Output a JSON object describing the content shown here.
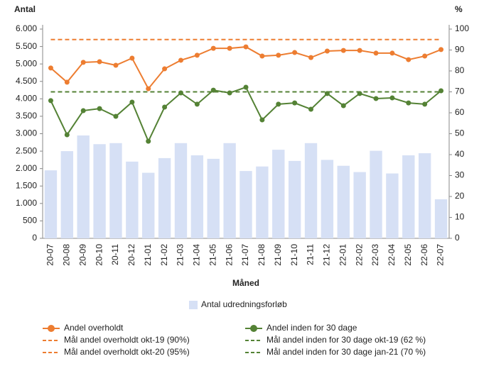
{
  "chart_data": {
    "type": "bar-line",
    "y_label": "Antal",
    "y2_label": "%",
    "x_label": "Måned",
    "categories": [
      "20-07",
      "20-08",
      "20-09",
      "20-10",
      "20-11",
      "20-12",
      "21-01",
      "21-02",
      "21-03",
      "21-04",
      "21-05",
      "21-06",
      "21-07",
      "21-08",
      "21-09",
      "21-10",
      "21-11",
      "21-12",
      "22-01",
      "22-02",
      "22-03",
      "22-04",
      "22-05",
      "22-06",
      "22-07"
    ],
    "ylim": [
      0,
      6000
    ],
    "yticks": [
      0,
      500,
      {
        "value": 1000,
        "label": "1.000"
      },
      {
        "value": 1500,
        "label": "1.500"
      },
      {
        "value": 2000,
        "label": "2.000"
      },
      {
        "value": 2500,
        "label": "2.500"
      },
      {
        "value": 3000,
        "label": "3.000"
      },
      {
        "value": 3500,
        "label": "3.500"
      },
      {
        "value": 4000,
        "label": "4.000"
      },
      {
        "value": 4500,
        "label": "4.500"
      },
      {
        "value": 5000,
        "label": "5.000"
      },
      {
        "value": 5500,
        "label": "5.500"
      },
      {
        "value": 6000,
        "label": "6.000"
      }
    ],
    "y2lim": [
      0,
      100
    ],
    "y2ticks": [
      0,
      10,
      20,
      30,
      40,
      50,
      60,
      70,
      80,
      90,
      100
    ],
    "bars": {
      "name": "Antal udredningsforløb",
      "color": "#d6e0f5",
      "values": [
        1950,
        2500,
        2950,
        2700,
        2730,
        2200,
        1880,
        2300,
        2730,
        2380,
        2280,
        2730,
        1930,
        2060,
        2540,
        2220,
        2730,
        2250,
        2080,
        1900,
        2510,
        1860,
        2380,
        2440,
        1120
      ]
    },
    "series": [
      {
        "name": "Andel overholdt",
        "color": "#ed7d31",
        "axis": "y2",
        "values": [
          81.4,
          74.6,
          84.1,
          84.4,
          82.7,
          86.1,
          71.5,
          81.0,
          85.1,
          87.5,
          90.8,
          90.8,
          91.5,
          87.1,
          87.5,
          88.8,
          86.4,
          89.5,
          89.8,
          89.8,
          88.5,
          88.5,
          85.4,
          87.1,
          90.2
        ]
      },
      {
        "name": "Andel inden for 30 dage",
        "color": "#548235",
        "axis": "y2",
        "values": [
          65.8,
          49.5,
          61.0,
          62.0,
          58.3,
          65.1,
          46.4,
          62.7,
          69.5,
          64.1,
          70.8,
          69.5,
          72.2,
          56.6,
          64.1,
          64.7,
          61.7,
          69.2,
          63.4,
          69.2,
          66.8,
          67.1,
          64.7,
          64.1,
          70.5
        ]
      }
    ],
    "targets": [
      {
        "name": "Mål andel overholdt okt-19 (90%)",
        "color": "#ed7d31"
      },
      {
        "name": "Mål andel overholdt okt-20 (95%)",
        "color": "#ed7d31",
        "value": 95
      },
      {
        "name": "Mål andel inden for 30 dage okt-19 (62 %)",
        "color": "#548235"
      },
      {
        "name": "Mål andel inden for 30 dage jan-21 (70 %)",
        "color": "#548235",
        "value": 70
      }
    ]
  }
}
